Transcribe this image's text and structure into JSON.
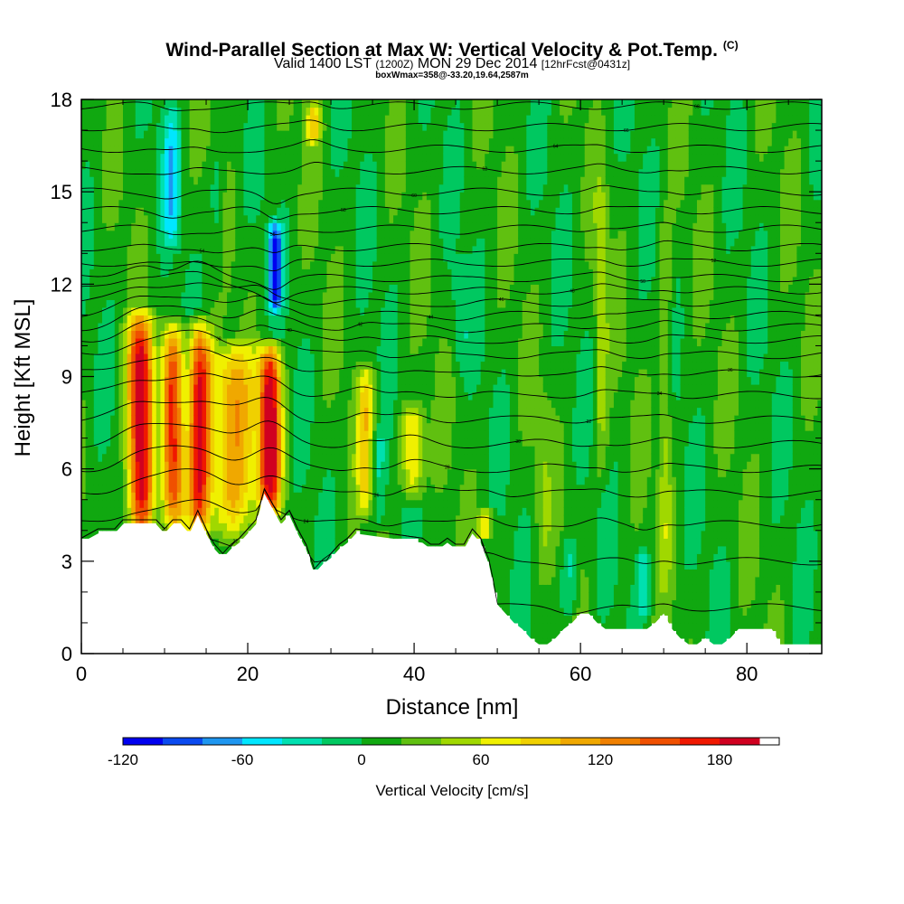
{
  "header": {
    "title": "Wind-Parallel Section at Max W: Vertical Velocity & Pot.Temp.",
    "copyright_mark": "(C)",
    "valid_prefix": "Valid 1400 LST",
    "valid_utc": "(1200Z)",
    "valid_date": "MON 29 Dec 2014",
    "forecast": "[12hrFcst@0431z]",
    "box_info": "boxWmax=358@-33.20,19.64,2587m"
  },
  "chart_data": {
    "type": "heatmap",
    "title": "Wind-Parallel Section at Max W: Vertical Velocity & Pot.Temp.",
    "xlabel": "Distance [nm]",
    "ylabel": "Height [Kft MSL]",
    "xlim": [
      0,
      89
    ],
    "ylim": [
      0,
      18
    ],
    "x_ticks": [
      "0",
      "20",
      "40",
      "60",
      "80"
    ],
    "x_tick_values": [
      0,
      20,
      40,
      60,
      80
    ],
    "y_ticks": [
      "0",
      "3",
      "6",
      "9",
      "12",
      "15",
      "18"
    ],
    "y_tick_values": [
      0,
      3,
      6,
      9,
      12,
      15,
      18
    ],
    "grid": false,
    "colorbar": {
      "label": "Vertical Velocity [cm/s]",
      "min": -120,
      "max": 210,
      "step": 20,
      "tick_labels": [
        "-120",
        "-60",
        "0",
        "60",
        "120",
        "180"
      ],
      "tick_values": [
        -120,
        -60,
        0,
        60,
        120,
        180
      ],
      "colors": [
        "#0000f0",
        "#0a4af0",
        "#1e96f0",
        "#00e6ff",
        "#00e0b0",
        "#00c860",
        "#10a810",
        "#60c010",
        "#a0d800",
        "#f0f000",
        "#f0d000",
        "#f0a800",
        "#f08000",
        "#f05000",
        "#f01800",
        "#d00020"
      ]
    },
    "background_w_value": 10,
    "velocity_bands": [
      {
        "x_center": 7.2,
        "width": 1.6,
        "y_bottom": 3.3,
        "y_top": 11.4,
        "w_max": 200
      },
      {
        "x_center": 11.0,
        "width": 1.4,
        "y_bottom": 3.7,
        "y_top": 11.0,
        "w_max": 155
      },
      {
        "x_center": 14.1,
        "width": 1.5,
        "y_bottom": 3.5,
        "y_top": 11.2,
        "w_max": 180
      },
      {
        "x_center": 18.2,
        "width": 2.6,
        "y_bottom": 3.4,
        "y_top": 10.4,
        "w_max": 105
      },
      {
        "x_center": 22.7,
        "width": 1.3,
        "y_bottom": 4.3,
        "y_top": 10.4,
        "w_max": 195
      },
      {
        "x_center": 34.2,
        "width": 1.0,
        "y_bottom": 4.2,
        "y_top": 9.6,
        "w_max": 80
      },
      {
        "x_center": 39.8,
        "width": 1.3,
        "y_bottom": 4.8,
        "y_top": 8.3,
        "w_max": 80
      },
      {
        "x_center": 48.6,
        "width": 0.9,
        "y_bottom": 3.6,
        "y_top": 4.8,
        "w_max": 65
      },
      {
        "x_center": 27.9,
        "width": 0.9,
        "y_bottom": 16.5,
        "y_top": 18.0,
        "w_max": 70
      },
      {
        "x_center": 9.2,
        "width": 1.3,
        "y_bottom": 3.6,
        "y_top": 11.0,
        "w_max": -45
      },
      {
        "x_center": 12.7,
        "width": 1.0,
        "y_bottom": 3.6,
        "y_top": 11.0,
        "w_max": -40
      },
      {
        "x_center": 23.3,
        "width": 0.8,
        "y_bottom": 11.0,
        "y_top": 14.2,
        "w_max": -115
      },
      {
        "x_center": 16.3,
        "width": 0.9,
        "y_bottom": 11.5,
        "y_top": 16.5,
        "w_max": -25
      },
      {
        "x_center": 10.8,
        "width": 1.0,
        "y_bottom": 13.0,
        "y_top": 18.0,
        "w_max": -55
      },
      {
        "x_center": 35.6,
        "width": 1.1,
        "y_bottom": 4.0,
        "y_top": 7.5,
        "w_max": -35
      },
      {
        "x_center": 45.6,
        "width": 1.0,
        "y_bottom": 9.0,
        "y_top": 13.0,
        "w_max": -25
      },
      {
        "x_center": 58.7,
        "width": 1.0,
        "y_bottom": 1.0,
        "y_top": 4.0,
        "w_max": -40
      },
      {
        "x_center": 67.5,
        "width": 0.8,
        "y_bottom": 1.0,
        "y_top": 3.5,
        "w_max": -45
      },
      {
        "x_center": 62.5,
        "width": 0.8,
        "y_bottom": 5.0,
        "y_top": 16.0,
        "w_max": 40
      },
      {
        "x_center": 70.2,
        "width": 0.8,
        "y_bottom": 1.5,
        "y_top": 15.0,
        "w_max": 40
      },
      {
        "x_center": 55.5,
        "width": 1.0,
        "y_bottom": 2.0,
        "y_top": 9.0,
        "w_max": 20
      }
    ],
    "terrain_profile": {
      "x": [
        0,
        2,
        4,
        5,
        6,
        8,
        9,
        10,
        11,
        12,
        13,
        14,
        15,
        16,
        17,
        18,
        19,
        20,
        21,
        22,
        24,
        25,
        26,
        27,
        28,
        29,
        30,
        31,
        32,
        33,
        41,
        42,
        43,
        44,
        45,
        46,
        47,
        48,
        49,
        50,
        51,
        52,
        53,
        54,
        55,
        56,
        57,
        58,
        59,
        60,
        61,
        62,
        63,
        64,
        65,
        66,
        67,
        68,
        69,
        70,
        71,
        72,
        73,
        74,
        75,
        76,
        77,
        78,
        79,
        80,
        81,
        82,
        83,
        84,
        85,
        89
      ],
      "y": [
        3.6,
        3.9,
        3.9,
        4.2,
        4.2,
        4.2,
        4.2,
        3.9,
        4.2,
        4.2,
        3.9,
        4.5,
        3.9,
        3.4,
        3.1,
        3.4,
        3.6,
        3.9,
        4.2,
        5.2,
        4.2,
        4.5,
        3.9,
        3.4,
        2.6,
        2.9,
        3.1,
        3.4,
        3.6,
        3.9,
        3.6,
        3.4,
        3.4,
        3.6,
        3.4,
        3.4,
        3.9,
        3.6,
        2.9,
        1.6,
        1.3,
        1.0,
        0.8,
        0.5,
        0.3,
        0.3,
        0.5,
        0.8,
        1.0,
        1.3,
        1.3,
        1.0,
        0.8,
        0.8,
        0.8,
        0.8,
        0.8,
        0.8,
        1.0,
        1.3,
        0.8,
        0.5,
        0.3,
        0.3,
        0.5,
        0.3,
        0.3,
        0.5,
        0.8,
        0.8,
        0.8,
        0.8,
        0.8,
        0.3,
        0.3,
        0.3
      ]
    },
    "theta_contours": {
      "base_heights": [
        1.5,
        3.0,
        4.2,
        5.2,
        6.0,
        6.8,
        7.6,
        8.4,
        9.1,
        9.7,
        10.2,
        10.6,
        11.0,
        11.4,
        11.8,
        12.2,
        12.7,
        13.2,
        13.8,
        14.4,
        15.0,
        15.7,
        16.4,
        17.1,
        17.8
      ],
      "labels": [
        "20",
        "22",
        "24",
        "26",
        "28",
        "30",
        "32",
        "34",
        "36",
        "38",
        "40",
        "42",
        "44",
        "46",
        "48",
        "50",
        "52",
        "54",
        "56",
        "58",
        "60",
        "62",
        "64",
        "66",
        "68"
      ]
    }
  }
}
